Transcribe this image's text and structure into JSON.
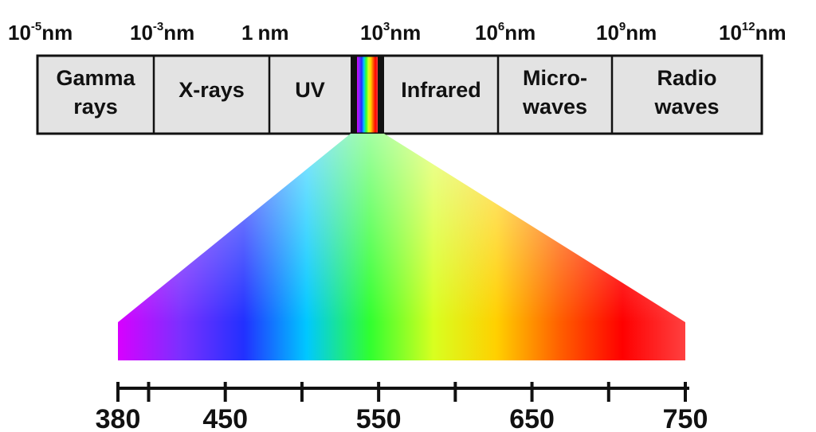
{
  "scale_labels": [
    {
      "base": "10",
      "exp": "-5",
      "unit": "nm"
    },
    {
      "base": "10",
      "exp": "-3",
      "unit": "nm"
    },
    {
      "base": "1",
      "exp": "",
      "unit": "nm"
    },
    {
      "base": "10",
      "exp": "3",
      "unit": "nm"
    },
    {
      "base": "10",
      "exp": "6",
      "unit": "nm"
    },
    {
      "base": "10",
      "exp": "9",
      "unit": "nm"
    },
    {
      "base": "10",
      "exp": "12",
      "unit": "nm"
    }
  ],
  "bands": [
    {
      "lines": [
        "Gamma",
        "rays"
      ]
    },
    {
      "lines": [
        "X-rays"
      ]
    },
    {
      "lines": [
        "UV"
      ]
    },
    {
      "lines": []
    },
    {
      "lines": [
        "Infrared"
      ]
    },
    {
      "lines": [
        "Micro-",
        "waves"
      ]
    },
    {
      "lines": [
        "Radio",
        "waves"
      ]
    }
  ],
  "visible_axis": {
    "ticks": [
      380,
      400,
      450,
      500,
      550,
      600,
      650,
      700,
      750
    ],
    "labeled": [
      "380",
      "450",
      "550",
      "650",
      "750"
    ],
    "min": 380,
    "max": 750
  },
  "colors": {
    "band_fill": "#e3e3e3",
    "border": "#111111",
    "spectrum_stops": [
      "#d800ff",
      "#7a30ff",
      "#2230ff",
      "#00c8ff",
      "#30ff30",
      "#d8ff20",
      "#ffd000",
      "#ff6000",
      "#ff0000",
      "#ff4040"
    ]
  }
}
